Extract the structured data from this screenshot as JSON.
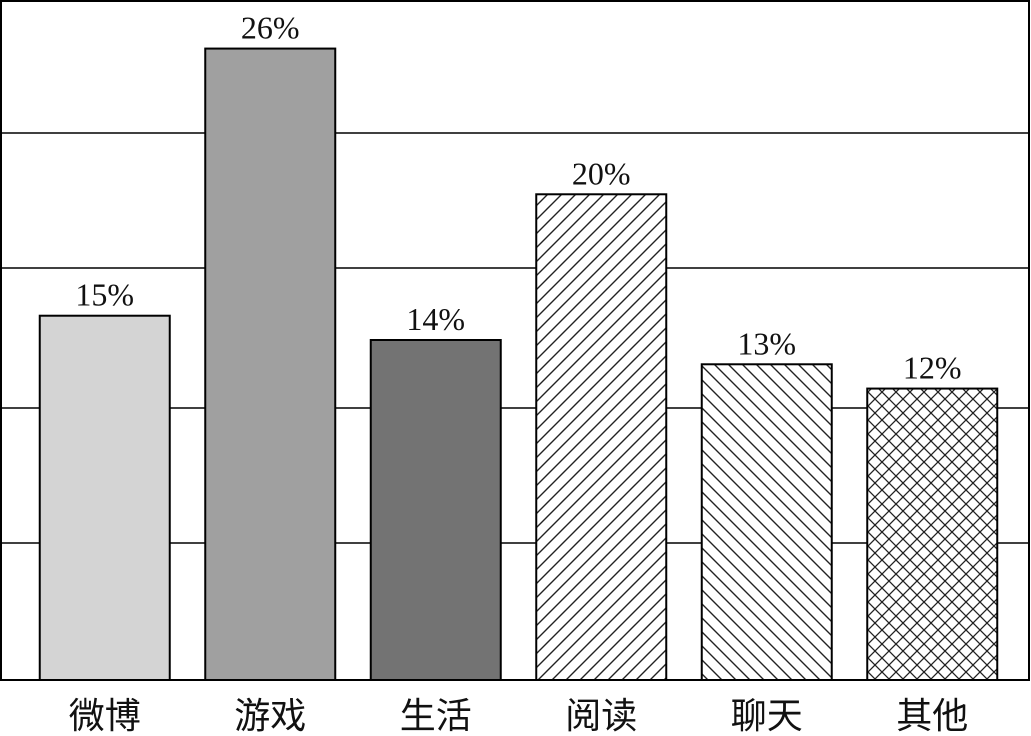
{
  "chart_data": {
    "type": "bar",
    "categories": [
      "微博",
      "游戏",
      "生活",
      "阅读",
      "聊天",
      "其他"
    ],
    "values": [
      15,
      26,
      14,
      20,
      13,
      12
    ],
    "value_labels": [
      "15%",
      "26%",
      "14%",
      "20%",
      "13%",
      "12%"
    ],
    "colors": [
      "#d4d4d4",
      "#a0a0a0",
      "#737373",
      "#ffffff",
      "#ffffff",
      "#ffffff"
    ],
    "patterns": [
      null,
      null,
      null,
      "diagonal-up",
      "diagonal-down",
      "cross"
    ],
    "ylim": [
      0,
      28
    ]
  }
}
